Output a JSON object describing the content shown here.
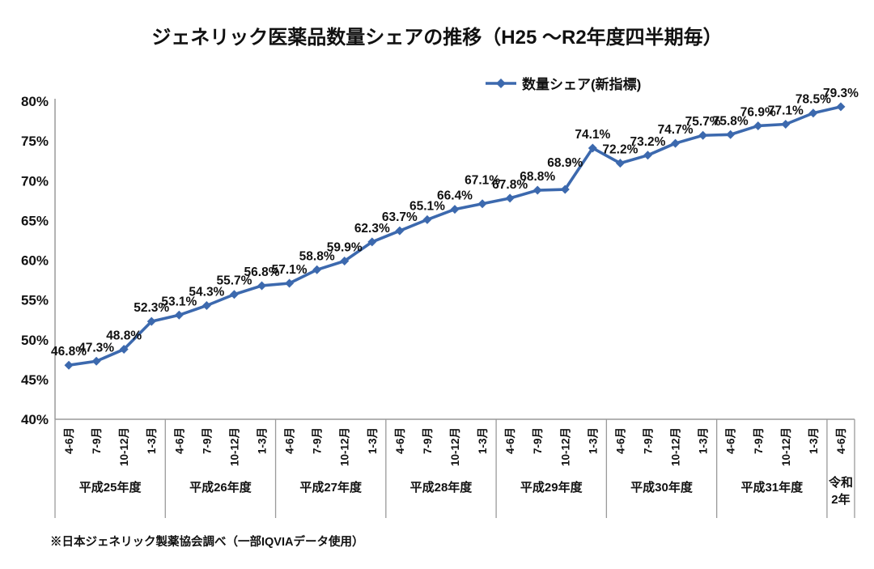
{
  "title": "ジェネリック医薬品数量シェアの推移（H25 ～R2年度四半期毎）",
  "legend": {
    "label": "数量シェア(新指標)"
  },
  "footnote": "※日本ジェネリック製薬協会調べ（一部IQVIAデータ使用）",
  "chart_data": {
    "type": "line",
    "title": "ジェネリック医薬品数量シェアの推移（H25 ～R2年度四半期毎）",
    "series": [
      {
        "name": "数量シェア(新指標)",
        "values": [
          46.8,
          47.3,
          48.8,
          52.3,
          53.1,
          54.3,
          55.7,
          56.8,
          57.1,
          58.8,
          59.9,
          62.3,
          63.7,
          65.1,
          66.4,
          67.1,
          67.8,
          68.8,
          68.9,
          74.1,
          72.2,
          73.2,
          74.7,
          75.7,
          75.8,
          76.9,
          77.1,
          78.5,
          79.3
        ]
      }
    ],
    "x_groups": [
      {
        "label": "平成25年度",
        "quarters": [
          "4-6月",
          "7-9月",
          "10-12月",
          "1-3月"
        ]
      },
      {
        "label": "平成26年度",
        "quarters": [
          "4-6月",
          "7-9月",
          "10-12月",
          "1-3月"
        ]
      },
      {
        "label": "平成27年度",
        "quarters": [
          "4-6月",
          "7-9月",
          "10-12月",
          "1-3月"
        ]
      },
      {
        "label": "平成28年度",
        "quarters": [
          "4-6月",
          "7-9月",
          "10-12月",
          "1-3月"
        ]
      },
      {
        "label": "平成29年度",
        "quarters": [
          "4-6月",
          "7-9月",
          "10-12月",
          "1-3月"
        ]
      },
      {
        "label": "平成30年度",
        "quarters": [
          "4-6月",
          "7-9月",
          "10-12月",
          "1-3月"
        ]
      },
      {
        "label": "平成31年度",
        "quarters": [
          "4-6月",
          "7-9月",
          "10-12月",
          "1-3月"
        ]
      },
      {
        "label": "令和\n2年",
        "quarters": [
          "4-6月"
        ]
      }
    ],
    "ylim": [
      40,
      80
    ],
    "y_tick_step": 5,
    "y_ticks": [
      "40%",
      "45%",
      "50%",
      "55%",
      "60%",
      "65%",
      "70%",
      "75%",
      "80%"
    ],
    "grid": false,
    "legend_position": "top",
    "data_labels": true,
    "data_label_format": "0.0%",
    "label_offsets": {
      "15": -12,
      "18": -16
    },
    "colors": {
      "series": "#3c69ae",
      "axis": "#9a9a9a",
      "text": "#111111"
    }
  }
}
